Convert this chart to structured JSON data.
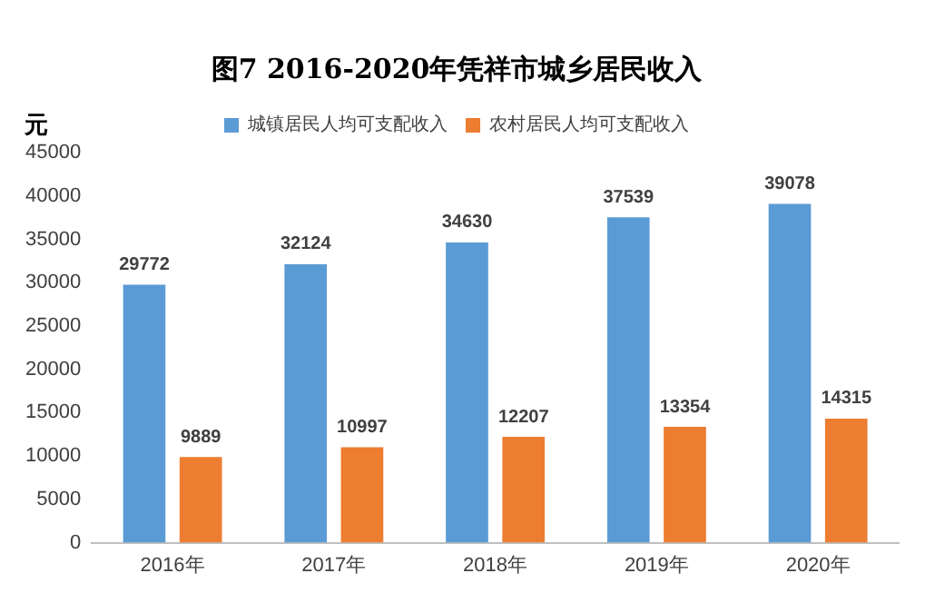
{
  "chart_data": {
    "type": "bar",
    "title": "图7 2016-2020年凭祥市城乡居民收入",
    "ylabel": "元",
    "categories": [
      "2016年",
      "2017年",
      "2018年",
      "2019年",
      "2020年"
    ],
    "series": [
      {
        "name": "城镇居民人均可支配收入",
        "color": "#5b9bd5",
        "values": [
          29772,
          32124,
          34630,
          37539,
          39078
        ]
      },
      {
        "name": "农村居民人均可支配收入",
        "color": "#ed7d31",
        "values": [
          9889,
          10997,
          12207,
          13354,
          14315
        ]
      }
    ],
    "ylim": [
      0,
      45000
    ],
    "yticks": [
      0,
      5000,
      10000,
      15000,
      20000,
      25000,
      30000,
      35000,
      40000,
      45000
    ],
    "grid": false,
    "legend": "top",
    "data_labels": true
  }
}
